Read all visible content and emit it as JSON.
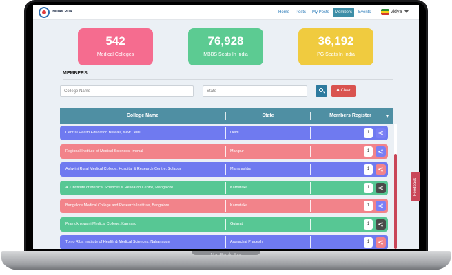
{
  "device": {
    "label": "MacBook Pro"
  },
  "nav": {
    "logo_text": "INDIAN RDA",
    "items": [
      "Home",
      "Posts",
      "My Posts",
      "Members",
      "Events"
    ],
    "active": "Members",
    "user": "vidya"
  },
  "stats": [
    {
      "number": "542",
      "label": "Medical Colleges",
      "color": "#f56c8f"
    },
    {
      "number": "76,928",
      "label": "MBBS Seats In India",
      "color": "#5ccb92"
    },
    {
      "number": "36,192",
      "label": "PG Seats In India",
      "color": "#f0cb3f"
    }
  ],
  "members": {
    "title": "MEMBERS",
    "college_placeholder": "College Name",
    "state_placeholder": "State",
    "clear_label": "Clear"
  },
  "table": {
    "headers": [
      "College Name",
      "State",
      "Members Register"
    ],
    "rows": [
      {
        "college": "Central Health Education Bureau, New Delhi",
        "state": "Delhi",
        "count": "1",
        "color": "#6f7af0",
        "share_color": "#7a7ff5"
      },
      {
        "college": "Regional Institute of Medical Sciences, Imphal",
        "state": "Manipur",
        "count": "1",
        "color": "#f2838a",
        "share_color": "#7a7ff5"
      },
      {
        "college": "Ashwini Rural Medical College, Hospital & Research Centre, Solapur",
        "state": "Maharashtra",
        "count": "1",
        "color": "#6f7af0",
        "share_color": "#f2838a"
      },
      {
        "college": "A J Institute of Medical Sciences & Research Centre, Mangalore",
        "state": "Karnataka",
        "count": "1",
        "color": "#57c794",
        "share_color": "#4a4a4a"
      },
      {
        "college": "Bangalore Medical College and Research Institute, Bangalore",
        "state": "Karnataka",
        "count": "1",
        "color": "#f2838a",
        "share_color": "#7a7ff5"
      },
      {
        "college": "Pramukhswami Medical College, Karmsad",
        "state": "Gujarat",
        "count": "1",
        "color": "#57c794",
        "share_color": "#4a4a4a"
      },
      {
        "college": "Tomo Riba Institute of Health & Medical Sciences, Naharlagun",
        "state": "Arunachal Pradesh",
        "count": "1",
        "color": "#6f7af0",
        "share_color": "#f2838a"
      }
    ]
  },
  "feedback_label": "Feedback"
}
